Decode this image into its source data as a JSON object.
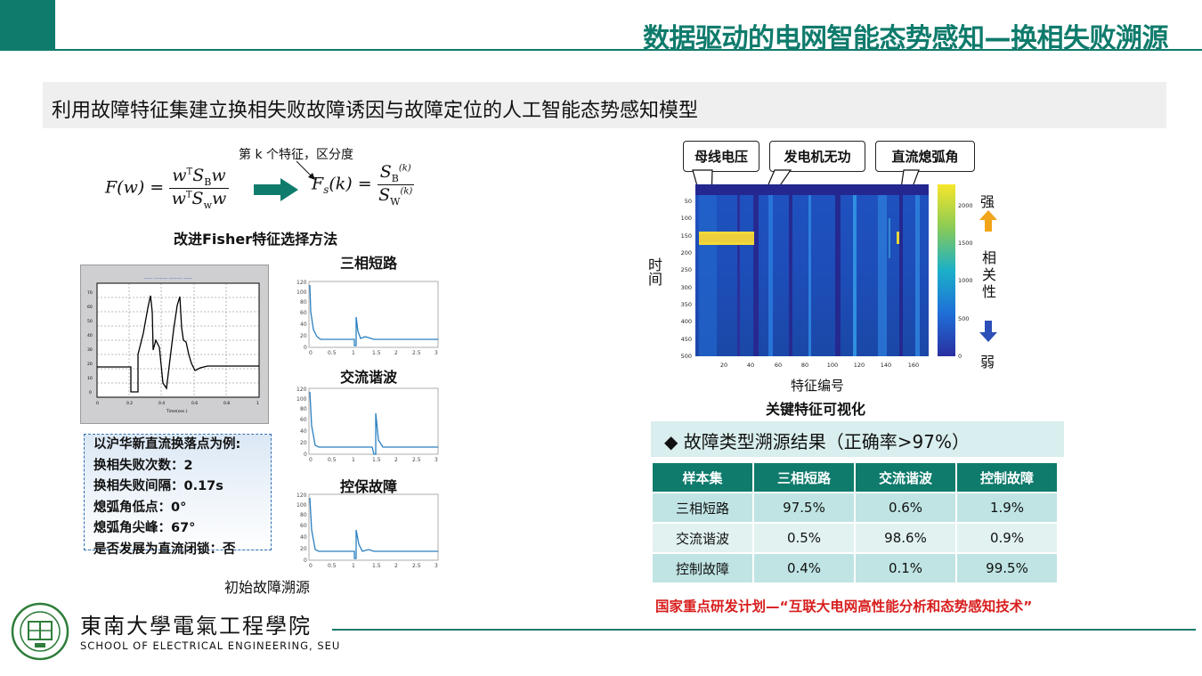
{
  "header": {
    "title": "数据驱动的电网智能态势感知—换相失败溯源",
    "subtitle": "利用故障特征集建立换相失败故障诱因与故障定位的人工智能态势感知模型"
  },
  "method": {
    "feature_note": "第 k 个特征，区分度",
    "fisher_label": "改进Fisher特征选择方法"
  },
  "left_panel": {
    "waveform_titles": [
      "三相短路",
      "交流谐波",
      "控保故障"
    ],
    "info_lines": [
      "以沪华新直流换落点为例:",
      "换相失败次数：2",
      "换相失败间隔：0.17s",
      "熄弧角低点：0°",
      "熄弧角尖峰：67°",
      "是否发展为直流闭锁：否"
    ],
    "initial_label": "初始故障溯源"
  },
  "heatmap": {
    "feature_labels": [
      "母线电压",
      "发电机无功",
      "直流熄弧角"
    ],
    "time_label": "时间",
    "x_label": "特征编号",
    "caption": "关键特征可视化",
    "y_ticks": [
      "50",
      "100",
      "150",
      "200",
      "250",
      "300",
      "350",
      "400",
      "450",
      "500"
    ],
    "x_ticks": [
      "20",
      "40",
      "60",
      "80",
      "100",
      "120",
      "140",
      "160"
    ],
    "colorbar_ticks": [
      "2000",
      "1500",
      "1000",
      "500",
      "0"
    ],
    "strong_label": "强",
    "correlation_label": "相关性",
    "weak_label": "弱"
  },
  "results": {
    "title": "◆ 故障类型溯源结果（正确率>97%）",
    "headers": [
      "样本集",
      "三相短路",
      "交流谐波",
      "控制故障"
    ],
    "rows": [
      [
        "三相短路",
        "97.5%",
        "0.6%",
        "1.9%"
      ],
      [
        "交流谐波",
        "0.5%",
        "98.6%",
        "0.9%"
      ],
      [
        "控制故障",
        "0.4%",
        "0.1%",
        "99.5%"
      ]
    ]
  },
  "program_note": "国家重点研发计划—“互联大电网高性能分析和态势感知技术”",
  "footer": {
    "school_cn": "東南大學電氣工程學院",
    "school_en": "SCHOOL OF ELECTRICAL ENGINEERING, SEU"
  },
  "colors": {
    "brand": "#0f7b6c",
    "accent_red": "#d81e1e"
  }
}
